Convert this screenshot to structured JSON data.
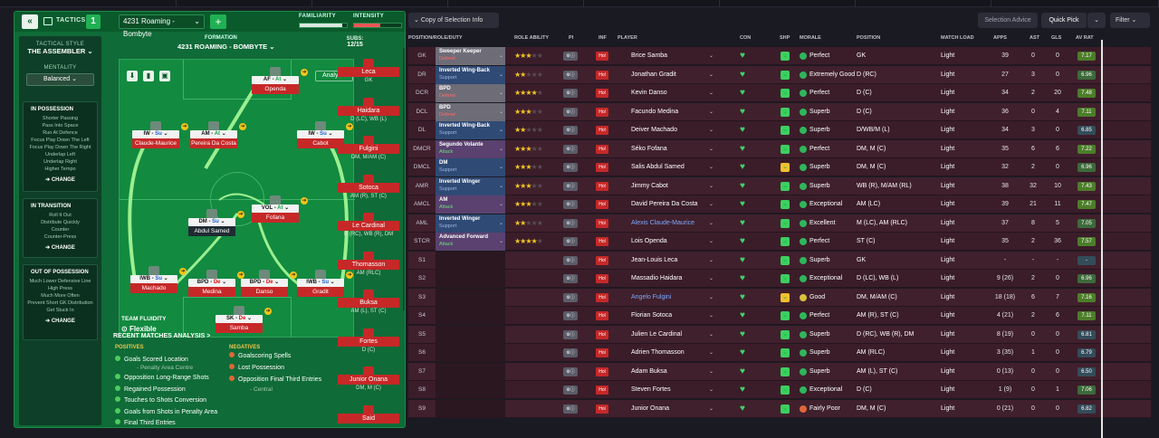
{
  "header": {
    "tactics_label": "TACTICS",
    "tactic_num": "1",
    "tactic_name": "4231 Roaming - Bombyte",
    "familiarity": "FAMILIARITY",
    "intensity": "INTENSITY",
    "familiarity_value": 0.9,
    "intensity_value": 0.55
  },
  "sidebar": {
    "style_label": "TACTICAL STYLE",
    "style_name": "THE ASSEMBLER",
    "mentality_label": "MENTALITY",
    "mentality_value": "Balanced",
    "possession_title": "IN POSSESSION",
    "possession_items": [
      "Shorter Passing",
      "Pass Into Space",
      "Run At Defence",
      "Focus Play Down The Left",
      "Focus Play Down The Right",
      "Underlap Left",
      "Underlap Right",
      "Higher Tempo"
    ],
    "transition_title": "IN TRANSITION",
    "transition_items": [
      "Roll It Out",
      "Distribute Quickly",
      "Counter",
      "Counter-Press"
    ],
    "oop_title": "OUT OF POSSESSION",
    "oop_items": [
      "Much Lower Defensive Line",
      "High Press",
      "Much More Often",
      "Prevent Short GK Distribution",
      "Get Stuck In"
    ],
    "change": "CHANGE"
  },
  "formation": {
    "label": "FORMATION",
    "name": "4231 ROAMING - BOMBYTE",
    "analysis": "Analysis",
    "subs_label": "SUBS:",
    "subs_value": "12/15",
    "fluidity_label": "TEAM FLUIDITY",
    "fluidity_value": "Flexible"
  },
  "pitch": [
    {
      "role": "AF",
      "duty": "At",
      "name": "Openda",
      "cls": "at"
    },
    {
      "role": "IW",
      "duty": "Su",
      "name": "Claude-Maurice",
      "cls": "su"
    },
    {
      "role": "AM",
      "duty": "At",
      "name": "Pereira Da Costa",
      "cls": "at"
    },
    {
      "role": "IW",
      "duty": "Su",
      "name": "Cabot",
      "cls": "su"
    },
    {
      "role": "VOL",
      "duty": "At",
      "name": "Fofana",
      "cls": "at"
    },
    {
      "role": "DM",
      "duty": "Su",
      "name": "Abdul Samed",
      "cls": "su"
    },
    {
      "role": "IWB",
      "duty": "Su",
      "name": "Machado",
      "cls": "su"
    },
    {
      "role": "BPD",
      "duty": "De",
      "name": "Medina",
      "cls": "de"
    },
    {
      "role": "BPD",
      "duty": "De",
      "name": "Danso",
      "cls": "de"
    },
    {
      "role": "IWB",
      "duty": "Su",
      "name": "Gradit",
      "cls": "su"
    },
    {
      "role": "SK",
      "duty": "De",
      "name": "Samba",
      "cls": "de"
    }
  ],
  "subs": [
    {
      "name": "Leca",
      "pos": "GK"
    },
    {
      "name": "Haidara",
      "pos": "D (LC), WB (L)"
    },
    {
      "name": "Fulgini",
      "pos": "DM, M/AM (C)"
    },
    {
      "name": "Sotoca",
      "pos": "AM (R), ST (C)"
    },
    {
      "name": "Le Cardinal",
      "pos": "D (RC), WB (R), DM"
    },
    {
      "name": "Thomasson",
      "pos": "AM (RLC)"
    },
    {
      "name": "Buksa",
      "pos": "AM (L), ST (C)"
    },
    {
      "name": "Fortes",
      "pos": "D (C)"
    },
    {
      "name": "Junior Onana",
      "pos": "DM, M (C)"
    },
    {
      "name": "Said",
      "pos": ""
    }
  ],
  "recent": {
    "title": "RECENT MATCHES ANALYSIS >",
    "pos_label": "POSITIVES",
    "neg_label": "NEGATIVES",
    "positives": [
      "Goals Scored Location",
      "- Penalty Area Centre",
      "Opposition Long-Range Shots",
      "Regained Possession",
      "Touches to Shots Conversion",
      "Goals from Shots in Penalty Area",
      "Final Third Entries"
    ],
    "negatives": [
      "Goalscoring Spells",
      "Lost Possession",
      "Opposition Final Third Entries",
      "- Central"
    ]
  },
  "toolbar": {
    "copy": "Copy of Selection Info",
    "advice": "Selection Advice",
    "quick": "Quick Pick",
    "filter": "Filter"
  },
  "columns": [
    "POSITION/ROLE/DUTY",
    "ROLE ABILITY",
    "PI",
    "INF",
    "PLAYER",
    "CON",
    "SHP",
    "MORALE",
    "POSITION",
    "MATCH LOAD",
    "APPS",
    "AST",
    "GLS",
    "AV RAT"
  ],
  "rows": [
    {
      "pos": "GK",
      "role": "Sweeper Keeper",
      "duty": "Defend",
      "stars": 3,
      "player": "Brice Samba",
      "morale": "Perfect",
      "position": "GK",
      "load": "Light",
      "apps": "39",
      "ast": "0",
      "gls": "0",
      "rat": "7.17"
    },
    {
      "pos": "DR",
      "role": "Inverted Wing-Back",
      "duty": "Support",
      "stars": 2,
      "player": "Jonathan Gradit",
      "morale": "Extremely Good",
      "position": "D (RC)",
      "load": "Light",
      "apps": "27",
      "ast": "3",
      "gls": "0",
      "rat": "6.96"
    },
    {
      "pos": "DCR",
      "role": "BPD",
      "duty": "Defend",
      "stars": 4,
      "player": "Kevin Danso",
      "morale": "Perfect",
      "position": "D (C)",
      "load": "Light",
      "apps": "34",
      "ast": "2",
      "gls": "20",
      "rat": "7.48"
    },
    {
      "pos": "DCL",
      "role": "BPD",
      "duty": "Defend",
      "stars": 3,
      "player": "Facundo Medina",
      "morale": "Superb",
      "position": "D (C)",
      "load": "Light",
      "apps": "36",
      "ast": "0",
      "gls": "4",
      "rat": "7.11"
    },
    {
      "pos": "DL",
      "role": "Inverted Wing-Back",
      "duty": "Support",
      "stars": 2,
      "player": "Deiver Machado",
      "morale": "Superb",
      "position": "D/WB/M (L)",
      "load": "Light",
      "apps": "34",
      "ast": "3",
      "gls": "0",
      "rat": "6.85"
    },
    {
      "pos": "DMCR",
      "role": "Segundo Volante",
      "duty": "Attack",
      "stars": 3,
      "player": "Séko Fofana",
      "morale": "Perfect",
      "position": "DM, M (C)",
      "load": "Light",
      "apps": "35",
      "ast": "6",
      "gls": "6",
      "rat": "7.22"
    },
    {
      "pos": "DMCL",
      "role": "DM",
      "duty": "Support",
      "stars": 3,
      "player": "Salis Abdul Samed",
      "morale": "Superb",
      "position": "DM, M (C)",
      "load": "Light",
      "apps": "32",
      "ast": "2",
      "gls": "0",
      "rat": "6.96"
    },
    {
      "pos": "AMR",
      "role": "Inverted Winger",
      "duty": "Support",
      "stars": 3,
      "player": "Jimmy Cabot",
      "morale": "Superb",
      "position": "WB (R), M/AM (RL)",
      "load": "Light",
      "apps": "38",
      "ast": "32",
      "gls": "10",
      "rat": "7.43"
    },
    {
      "pos": "AMCL",
      "role": "AM",
      "duty": "Attack",
      "stars": 3,
      "player": "David Pereira Da Costa",
      "morale": "Exceptional",
      "position": "AM (LC)",
      "load": "Light",
      "apps": "39",
      "ast": "21",
      "gls": "11",
      "rat": "7.47"
    },
    {
      "pos": "AML",
      "role": "Inverted Winger",
      "duty": "Support",
      "stars": 2,
      "player": "Alexis Claude-Maurice",
      "morale": "Excellent",
      "position": "M (LC), AM (RLC)",
      "load": "Light",
      "apps": "37",
      "ast": "8",
      "gls": "5",
      "rat": "7.05"
    },
    {
      "pos": "STCR",
      "role": "Advanced Forward",
      "duty": "Attack",
      "stars": 4,
      "player": "Lois Openda",
      "morale": "Perfect",
      "position": "ST (C)",
      "load": "Light",
      "apps": "35",
      "ast": "2",
      "gls": "36",
      "rat": "7.57"
    },
    {
      "pos": "S1",
      "role": "",
      "duty": "",
      "stars": 0,
      "player": "Jean-Louis Leca",
      "morale": "Superb",
      "position": "GK",
      "load": "Light",
      "apps": "-",
      "ast": "-",
      "gls": "-",
      "rat": "-"
    },
    {
      "pos": "S2",
      "role": "",
      "duty": "",
      "stars": 0,
      "player": "Massadio Haidara",
      "morale": "Exceptional",
      "position": "D (LC), WB (L)",
      "load": "Light",
      "apps": "9 (26)",
      "ast": "2",
      "gls": "0",
      "rat": "6.96"
    },
    {
      "pos": "S3",
      "role": "",
      "duty": "",
      "stars": 0,
      "player": "Angelo Fulgini",
      "morale": "Good",
      "position": "DM, M/AM (C)",
      "load": "Light",
      "apps": "18 (18)",
      "ast": "6",
      "gls": "7",
      "rat": "7.16"
    },
    {
      "pos": "S4",
      "role": "",
      "duty": "",
      "stars": 0,
      "player": "Florian Sotoca",
      "morale": "Perfect",
      "position": "AM (R), ST (C)",
      "load": "Light",
      "apps": "4 (21)",
      "ast": "2",
      "gls": "6",
      "rat": "7.11"
    },
    {
      "pos": "S5",
      "role": "",
      "duty": "",
      "stars": 0,
      "player": "Julien Le Cardinal",
      "morale": "Superb",
      "position": "D (RC), WB (R), DM",
      "load": "Light",
      "apps": "8 (19)",
      "ast": "0",
      "gls": "0",
      "rat": "6.81"
    },
    {
      "pos": "S6",
      "role": "",
      "duty": "",
      "stars": 0,
      "player": "Adrien Thomasson",
      "morale": "Superb",
      "position": "AM (RLC)",
      "load": "Light",
      "apps": "3 (35)",
      "ast": "1",
      "gls": "0",
      "rat": "6.79"
    },
    {
      "pos": "S7",
      "role": "",
      "duty": "",
      "stars": 0,
      "player": "Adam Buksa",
      "morale": "Superb",
      "position": "AM (L), ST (C)",
      "load": "Light",
      "apps": "0 (13)",
      "ast": "0",
      "gls": "0",
      "rat": "6.50"
    },
    {
      "pos": "S8",
      "role": "",
      "duty": "",
      "stars": 0,
      "player": "Steven Fortes",
      "morale": "Exceptional",
      "position": "D (C)",
      "load": "Light",
      "apps": "1 (9)",
      "ast": "0",
      "gls": "1",
      "rat": "7.06"
    },
    {
      "pos": "S9",
      "role": "",
      "duty": "",
      "stars": 0,
      "player": "Junior Onana",
      "morale": "Fairly Poor",
      "position": "DM, M (C)",
      "load": "Light",
      "apps": "0 (21)",
      "ast": "0",
      "gls": "0",
      "rat": "6.82"
    }
  ],
  "colors": {
    "pos_defend": "#6d6c77",
    "pos_support": "#2f4a75",
    "pos_attack": "#5a4170",
    "red": "#c62828",
    "green": "#20b054"
  }
}
